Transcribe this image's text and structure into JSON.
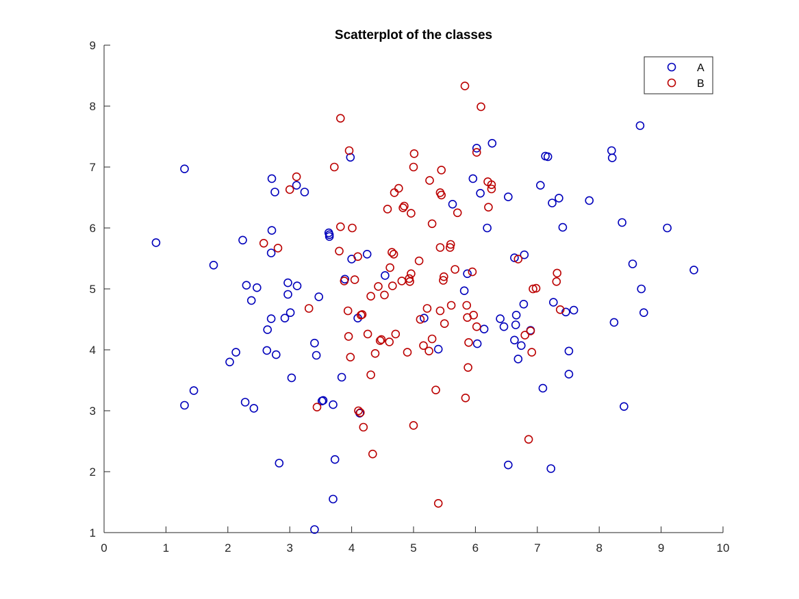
{
  "chart_data": {
    "type": "scatter",
    "title": "Scatterplot of the classes",
    "xlabel": "",
    "ylabel": "",
    "xlim": [
      0,
      10
    ],
    "ylim": [
      1,
      9
    ],
    "xticks": [
      "0",
      "1",
      "2",
      "3",
      "4",
      "5",
      "6",
      "7",
      "8",
      "9",
      "10"
    ],
    "yticks": [
      "1",
      "2",
      "3",
      "4",
      "5",
      "6",
      "7",
      "8",
      "9"
    ],
    "grid": false,
    "legend_position": "top-right",
    "marker": "open-circle",
    "series": [
      {
        "name": "A",
        "color": "#0000bb",
        "points": [
          [
            0.84,
            5.76
          ],
          [
            1.3,
            6.97
          ],
          [
            1.45,
            3.33
          ],
          [
            1.3,
            3.09
          ],
          [
            1.77,
            5.39
          ],
          [
            2.03,
            3.8
          ],
          [
            2.13,
            3.96
          ],
          [
            2.24,
            5.8
          ],
          [
            2.28,
            3.14
          ],
          [
            2.3,
            5.06
          ],
          [
            2.38,
            4.81
          ],
          [
            2.42,
            3.04
          ],
          [
            2.47,
            5.02
          ],
          [
            2.63,
            3.99
          ],
          [
            2.64,
            4.33
          ],
          [
            2.7,
            4.51
          ],
          [
            2.7,
            5.59
          ],
          [
            2.71,
            5.96
          ],
          [
            2.71,
            6.81
          ],
          [
            2.76,
            6.59
          ],
          [
            2.78,
            3.92
          ],
          [
            2.83,
            2.14
          ],
          [
            2.92,
            4.52
          ],
          [
            2.97,
            4.91
          ],
          [
            2.97,
            5.1
          ],
          [
            3.01,
            4.61
          ],
          [
            3.03,
            3.54
          ],
          [
            3.11,
            6.7
          ],
          [
            3.12,
            5.05
          ],
          [
            3.24,
            6.59
          ],
          [
            3.4,
            4.11
          ],
          [
            3.43,
            3.91
          ],
          [
            3.47,
            4.87
          ],
          [
            3.52,
            3.16
          ],
          [
            3.54,
            3.17
          ],
          [
            3.63,
            5.92
          ],
          [
            3.64,
            5.86
          ],
          [
            3.64,
            5.89
          ],
          [
            3.7,
            3.1
          ],
          [
            3.7,
            1.55
          ],
          [
            3.73,
            2.2
          ],
          [
            3.4,
            1.05
          ],
          [
            3.84,
            3.55
          ],
          [
            3.89,
            5.16
          ],
          [
            3.98,
            7.16
          ],
          [
            4.0,
            5.49
          ],
          [
            4.1,
            4.52
          ],
          [
            4.13,
            2.96
          ],
          [
            4.25,
            5.57
          ],
          [
            4.54,
            5.22
          ],
          [
            5.17,
            4.52
          ],
          [
            5.4,
            4.01
          ],
          [
            5.63,
            6.39
          ],
          [
            5.82,
            4.97
          ],
          [
            5.87,
            5.25
          ],
          [
            5.96,
            6.81
          ],
          [
            6.02,
            7.31
          ],
          [
            6.03,
            4.1
          ],
          [
            6.08,
            6.57
          ],
          [
            6.14,
            4.34
          ],
          [
            6.19,
            6.0
          ],
          [
            6.27,
            7.39
          ],
          [
            6.4,
            4.51
          ],
          [
            6.46,
            4.38
          ],
          [
            6.53,
            6.51
          ],
          [
            6.53,
            2.11
          ],
          [
            6.63,
            4.16
          ],
          [
            6.63,
            5.51
          ],
          [
            6.65,
            4.41
          ],
          [
            6.66,
            4.57
          ],
          [
            6.69,
            3.85
          ],
          [
            6.74,
            4.07
          ],
          [
            6.78,
            4.75
          ],
          [
            6.79,
            5.56
          ],
          [
            6.89,
            4.32
          ],
          [
            7.05,
            6.7
          ],
          [
            7.09,
            3.37
          ],
          [
            7.13,
            7.18
          ],
          [
            7.17,
            7.17
          ],
          [
            7.22,
            2.05
          ],
          [
            7.24,
            6.41
          ],
          [
            7.26,
            4.78
          ],
          [
            7.35,
            6.49
          ],
          [
            7.41,
            6.01
          ],
          [
            7.46,
            4.62
          ],
          [
            7.51,
            3.98
          ],
          [
            7.51,
            3.6
          ],
          [
            7.59,
            4.65
          ],
          [
            7.84,
            6.45
          ],
          [
            8.2,
            7.27
          ],
          [
            8.21,
            7.15
          ],
          [
            8.24,
            4.45
          ],
          [
            8.37,
            6.09
          ],
          [
            8.4,
            3.07
          ],
          [
            8.54,
            5.41
          ],
          [
            8.66,
            7.68
          ],
          [
            8.68,
            5.0
          ],
          [
            8.72,
            4.61
          ],
          [
            9.1,
            6.0
          ],
          [
            9.53,
            5.31
          ]
        ]
      },
      {
        "name": "B",
        "color": "#bb0000",
        "points": [
          [
            2.58,
            5.75
          ],
          [
            2.81,
            5.67
          ],
          [
            3.0,
            6.63
          ],
          [
            3.11,
            6.84
          ],
          [
            3.31,
            4.68
          ],
          [
            3.44,
            3.06
          ],
          [
            3.72,
            7.0
          ],
          [
            3.8,
            5.62
          ],
          [
            3.82,
            7.8
          ],
          [
            3.82,
            6.02
          ],
          [
            3.88,
            5.13
          ],
          [
            3.94,
            4.64
          ],
          [
            3.95,
            4.22
          ],
          [
            3.96,
            7.27
          ],
          [
            3.98,
            3.88
          ],
          [
            4.01,
            6.0
          ],
          [
            4.05,
            5.15
          ],
          [
            4.1,
            5.53
          ],
          [
            4.11,
            3.0
          ],
          [
            4.14,
            2.97
          ],
          [
            4.15,
            4.57
          ],
          [
            4.17,
            4.58
          ],
          [
            4.19,
            2.73
          ],
          [
            4.26,
            4.26
          ],
          [
            4.31,
            4.88
          ],
          [
            4.31,
            3.59
          ],
          [
            4.34,
            2.29
          ],
          [
            4.38,
            3.94
          ],
          [
            4.43,
            5.04
          ],
          [
            4.46,
            4.15
          ],
          [
            4.48,
            4.17
          ],
          [
            4.53,
            4.9
          ],
          [
            4.58,
            6.31
          ],
          [
            4.61,
            4.13
          ],
          [
            4.62,
            5.35
          ],
          [
            4.65,
            5.6
          ],
          [
            4.66,
            5.05
          ],
          [
            4.68,
            5.57
          ],
          [
            4.69,
            6.58
          ],
          [
            4.71,
            4.26
          ],
          [
            4.76,
            6.65
          ],
          [
            4.81,
            5.13
          ],
          [
            4.83,
            6.33
          ],
          [
            4.85,
            6.36
          ],
          [
            4.9,
            3.96
          ],
          [
            4.93,
            5.17
          ],
          [
            4.94,
            5.12
          ],
          [
            4.96,
            5.25
          ],
          [
            4.96,
            6.24
          ],
          [
            5.0,
            2.76
          ],
          [
            5.0,
            7.0
          ],
          [
            5.01,
            7.22
          ],
          [
            5.09,
            5.46
          ],
          [
            5.11,
            4.5
          ],
          [
            5.16,
            4.07
          ],
          [
            5.22,
            4.68
          ],
          [
            5.25,
            3.98
          ],
          [
            5.26,
            6.78
          ],
          [
            5.3,
            6.07
          ],
          [
            5.3,
            4.18
          ],
          [
            5.36,
            3.34
          ],
          [
            5.4,
            1.48
          ],
          [
            5.43,
            6.58
          ],
          [
            5.43,
            5.68
          ],
          [
            5.43,
            4.64
          ],
          [
            5.45,
            6.95
          ],
          [
            5.45,
            6.54
          ],
          [
            5.48,
            5.14
          ],
          [
            5.49,
            5.2
          ],
          [
            5.5,
            4.43
          ],
          [
            5.59,
            5.68
          ],
          [
            5.6,
            5.73
          ],
          [
            5.61,
            4.73
          ],
          [
            5.67,
            5.32
          ],
          [
            5.71,
            6.25
          ],
          [
            5.83,
            8.33
          ],
          [
            5.84,
            3.21
          ],
          [
            5.86,
            4.73
          ],
          [
            5.87,
            4.53
          ],
          [
            5.88,
            3.71
          ],
          [
            5.89,
            4.12
          ],
          [
            5.95,
            5.28
          ],
          [
            5.97,
            4.57
          ],
          [
            6.02,
            4.38
          ],
          [
            6.02,
            7.24
          ],
          [
            6.09,
            7.99
          ],
          [
            6.2,
            6.76
          ],
          [
            6.21,
            6.34
          ],
          [
            6.26,
            6.71
          ],
          [
            6.26,
            6.64
          ],
          [
            6.69,
            5.49
          ],
          [
            6.8,
            4.24
          ],
          [
            6.86,
            2.53
          ],
          [
            6.89,
            4.31
          ],
          [
            6.91,
            3.96
          ],
          [
            6.93,
            5.0
          ],
          [
            7.32,
            5.26
          ],
          [
            7.31,
            5.12
          ],
          [
            7.37,
            4.66
          ],
          [
            6.98,
            5.01
          ]
        ]
      }
    ]
  }
}
